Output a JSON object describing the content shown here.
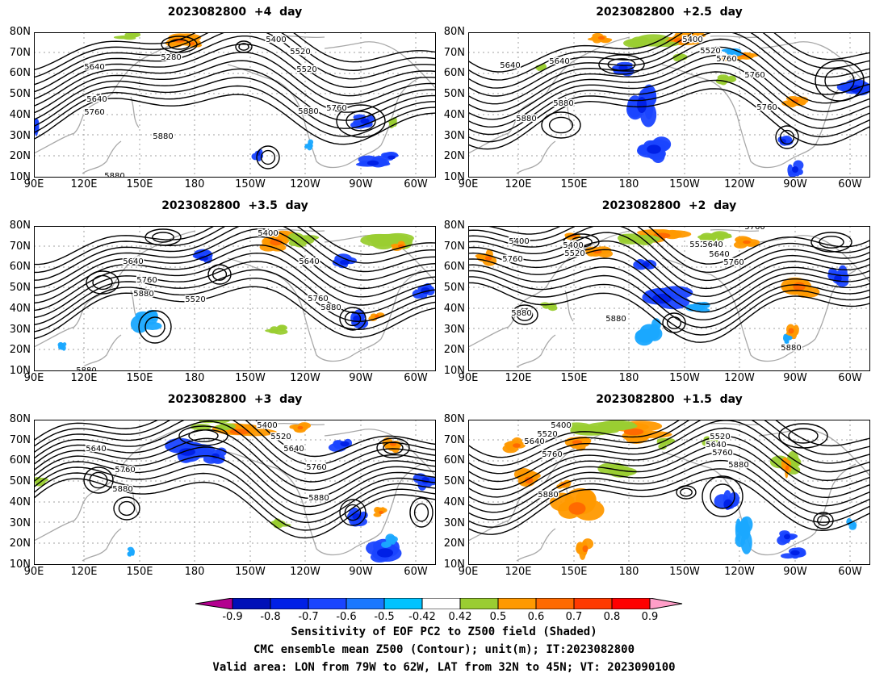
{
  "panels": [
    {
      "title": "2023082800  +4  day",
      "contour_labels": [
        "5400",
        "5520",
        "5280",
        "5640",
        "5520",
        "5640",
        "5760",
        "5880",
        "5760",
        "5880",
        "5880"
      ]
    },
    {
      "title": "2023082800  +2.5  day",
      "contour_labels": [
        "5400",
        "5520",
        "5640",
        "5760",
        "5640",
        "5760",
        "5880",
        "5760",
        "5880"
      ]
    },
    {
      "title": "2023082800  +3.5  day",
      "contour_labels": [
        "5400",
        "5640",
        "5640",
        "5760",
        "5880",
        "5520",
        "5760",
        "5880",
        "5880"
      ]
    },
    {
      "title": "2023082800  +2  day",
      "contour_labels": [
        "5400",
        "5400",
        "5520",
        "5520",
        "5640",
        "5640",
        "5760",
        "5760",
        "5760",
        "5880",
        "5880",
        "5880"
      ]
    },
    {
      "title": "2023082800  +3  day",
      "contour_labels": [
        "5400",
        "5520",
        "5640",
        "5640",
        "5760",
        "5760",
        "5880",
        "5880"
      ]
    },
    {
      "title": "2023082800  +1.5  day",
      "contour_labels": [
        "5400",
        "5520",
        "5640",
        "5520",
        "5640",
        "5760",
        "5760",
        "5880",
        "5880"
      ]
    }
  ],
  "axes": {
    "lat_labels": [
      "80N",
      "70N",
      "60N",
      "50N",
      "40N",
      "30N",
      "20N",
      "10N"
    ],
    "lon_labels": [
      "90E",
      "120E",
      "150E",
      "180",
      "150W",
      "120W",
      "90W",
      "60W"
    ]
  },
  "colorbar": {
    "ticks": [
      "-0.9",
      "-0.8",
      "-0.7",
      "-0.6",
      "-0.5",
      "-0.42",
      "0.42",
      "0.5",
      "0.6",
      "0.7",
      "0.8",
      "0.9"
    ],
    "colors": [
      "#b3008f",
      "#0010b8",
      "#0020e6",
      "#1a45ff",
      "#1a78ff",
      "#00c3ff",
      "#ffffff",
      "#9acd32",
      "#ff9900",
      "#ff6a00",
      "#ff3a00",
      "#ff0000",
      "#ff9ec8"
    ]
  },
  "captions": [
    "Sensitivity of EOF PC2 to Z500 field (Shaded)",
    "CMC ensemble mean Z500 (Contour); unit(m); IT:2023082800",
    "Valid area: LON from 79W to 62W, LAT from 32N to 45N; VT: 2023090100"
  ]
}
